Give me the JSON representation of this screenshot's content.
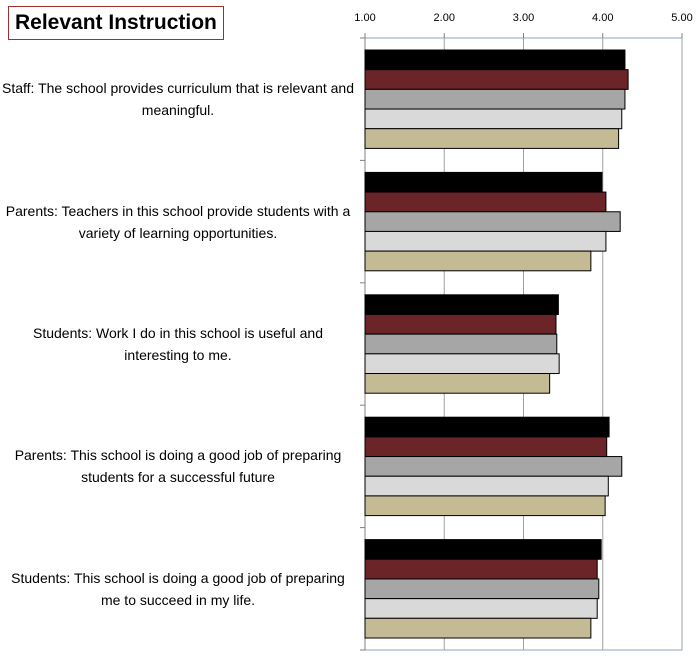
{
  "chart_data": {
    "type": "bar",
    "orientation": "horizontal",
    "title": "Relevant Instruction",
    "categories": [
      "Staff: The school provides curriculum that is relevant and meaningful.",
      "Parents: Teachers in this school provide students with a variety of learning opportunities.",
      "Students: Work I do in this school is useful and interesting to me.",
      "Parents: This school is doing a good job of preparing students for a successful future",
      "Students: This school is doing a good job of preparing me to succeed in my life."
    ],
    "series": [
      {
        "color": "#000000",
        "values": [
          4.28,
          3.99,
          3.44,
          4.08,
          3.98
        ]
      },
      {
        "color": "#6b2427",
        "values": [
          4.32,
          4.04,
          3.41,
          4.05,
          3.93
        ]
      },
      {
        "color": "#a6a6a6",
        "values": [
          4.28,
          4.22,
          3.42,
          4.24,
          3.95
        ]
      },
      {
        "color": "#d9d9d9",
        "values": [
          4.24,
          4.04,
          3.45,
          4.07,
          3.93
        ]
      },
      {
        "color": "#c4bb95",
        "values": [
          4.2,
          3.85,
          3.33,
          4.03,
          3.85
        ]
      }
    ],
    "xlim": [
      1,
      5
    ],
    "xticks": [
      {
        "value": 1,
        "label": "1.00"
      },
      {
        "value": 2,
        "label": "2.00"
      },
      {
        "value": 3,
        "label": "3.00"
      },
      {
        "value": 4,
        "label": "4.00"
      },
      {
        "value": 5,
        "label": "5.00"
      }
    ],
    "grid": true
  }
}
